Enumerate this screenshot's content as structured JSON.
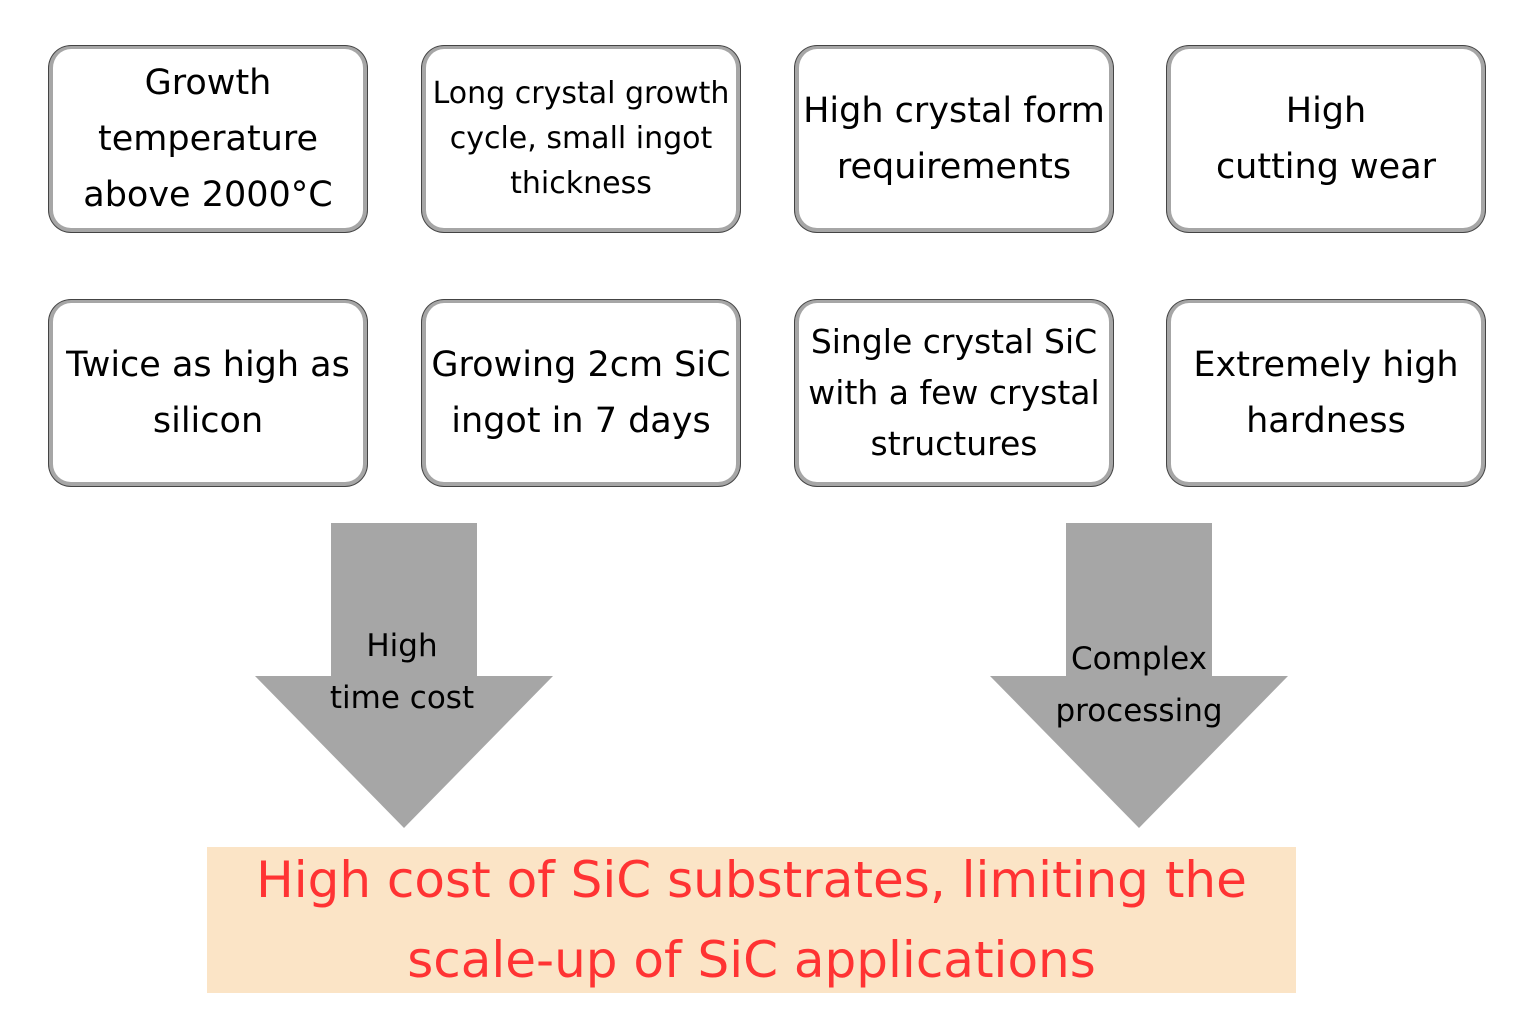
{
  "colors": {
    "box_border": "#a6a6a6",
    "arrow": "#a6a6a6",
    "result_bg": "#fbe4c6",
    "result_text": "#ff3333"
  },
  "boxes_top": [
    {
      "lines": [
        "Growth",
        "temperature",
        "above 2000°C"
      ]
    },
    {
      "lines": [
        "Long crystal growth",
        "cycle, small ingot",
        "thickness"
      ]
    },
    {
      "lines": [
        "High crystal form",
        "requirements"
      ]
    },
    {
      "lines": [
        "High",
        "cutting wear"
      ]
    }
  ],
  "boxes_bottom": [
    {
      "lines": [
        "Twice as high as",
        "silicon"
      ]
    },
    {
      "lines": [
        "Growing 2cm SiC",
        "ingot in 7 days"
      ]
    },
    {
      "lines": [
        "Single crystal SiC",
        "with a few crystal",
        "structures"
      ]
    },
    {
      "lines": [
        "Extremely high",
        "hardness"
      ]
    }
  ],
  "arrows": [
    {
      "lines": [
        "High",
        "time cost"
      ]
    },
    {
      "lines": [
        "Complex",
        "processing"
      ]
    }
  ],
  "result": {
    "lines": [
      "High cost of SiC substrates, limiting the",
      "scale-up of SiC applications"
    ]
  }
}
